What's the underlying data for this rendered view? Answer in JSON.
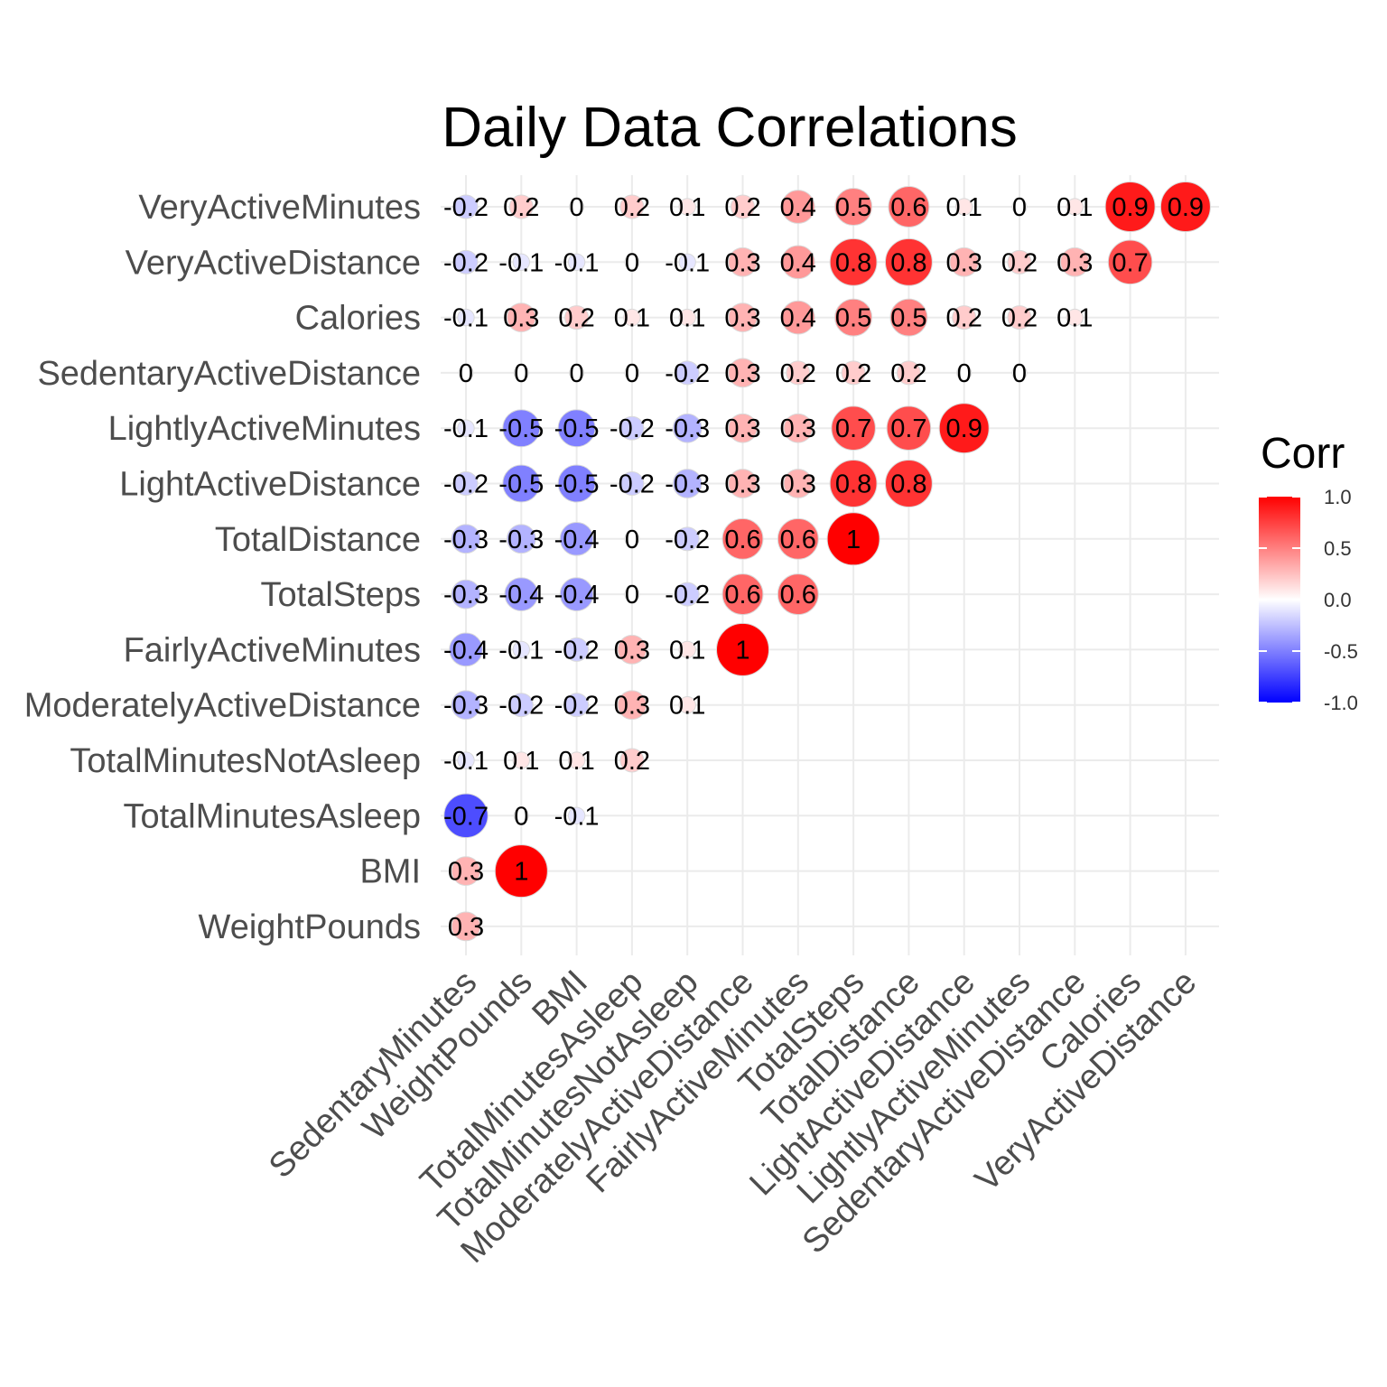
{
  "chart_data": {
    "type": "heatmap",
    "title": "Daily Data Correlations",
    "x_categories": [
      "SedentaryMinutes",
      "WeightPounds",
      "BMI",
      "TotalMinutesAsleep",
      "TotalMinutesNotAsleep",
      "ModeratelyActiveDistance",
      "FairlyActiveMinutes",
      "TotalSteps",
      "TotalDistance",
      "LightActiveDistance",
      "LightlyActiveMinutes",
      "SedentaryActiveDistance",
      "Calories",
      "VeryActiveDistance"
    ],
    "y_categories": [
      "VeryActiveMinutes",
      "VeryActiveDistance",
      "Calories",
      "SedentaryActiveDistance",
      "LightlyActiveMinutes",
      "LightActiveDistance",
      "TotalDistance",
      "TotalSteps",
      "FairlyActiveMinutes",
      "ModeratelyActiveDistance",
      "TotalMinutesNotAsleep",
      "TotalMinutesAsleep",
      "BMI",
      "WeightPounds"
    ],
    "values": [
      [
        -0.2,
        0.2,
        0,
        0.2,
        0.1,
        0.2,
        0.4,
        0.5,
        0.6,
        0.1,
        0,
        0.1,
        0.9,
        0.9
      ],
      [
        -0.2,
        -0.1,
        -0.1,
        0,
        -0.1,
        0.3,
        0.4,
        0.8,
        0.8,
        0.3,
        0.2,
        0.3,
        0.7,
        null
      ],
      [
        -0.1,
        0.3,
        0.2,
        0.1,
        0.1,
        0.3,
        0.4,
        0.5,
        0.5,
        0.2,
        0.2,
        0.1,
        null,
        null
      ],
      [
        0,
        0,
        0,
        0,
        -0.2,
        0.3,
        0.2,
        0.2,
        0.2,
        0,
        0,
        null,
        null,
        null
      ],
      [
        -0.1,
        -0.5,
        -0.5,
        -0.2,
        -0.3,
        0.3,
        0.3,
        0.7,
        0.7,
        0.9,
        null,
        null,
        null,
        null
      ],
      [
        -0.2,
        -0.5,
        -0.5,
        -0.2,
        -0.3,
        0.3,
        0.3,
        0.8,
        0.8,
        null,
        null,
        null,
        null,
        null
      ],
      [
        -0.3,
        -0.3,
        -0.4,
        0,
        -0.2,
        0.6,
        0.6,
        1,
        null,
        null,
        null,
        null,
        null,
        null
      ],
      [
        -0.3,
        -0.4,
        -0.4,
        0,
        -0.2,
        0.6,
        0.6,
        null,
        null,
        null,
        null,
        null,
        null,
        null
      ],
      [
        -0.4,
        -0.1,
        -0.2,
        0.3,
        0.1,
        1,
        null,
        null,
        null,
        null,
        null,
        null,
        null,
        null
      ],
      [
        -0.3,
        -0.2,
        -0.2,
        0.3,
        0.1,
        null,
        null,
        null,
        null,
        null,
        null,
        null,
        null,
        null
      ],
      [
        -0.1,
        0.1,
        0.1,
        0.2,
        null,
        null,
        null,
        null,
        null,
        null,
        null,
        null,
        null,
        null
      ],
      [
        -0.7,
        0,
        -0.1,
        null,
        null,
        null,
        null,
        null,
        null,
        null,
        null,
        null,
        null,
        null
      ],
      [
        0.3,
        1,
        null,
        null,
        null,
        null,
        null,
        null,
        null,
        null,
        null,
        null,
        null,
        null
      ],
      [
        0.3,
        null,
        null,
        null,
        null,
        null,
        null,
        null,
        null,
        null,
        null,
        null,
        null,
        null
      ]
    ],
    "legend": {
      "title": "Corr",
      "ticks": [
        "1.0",
        "0.5",
        "0.0",
        "-0.5",
        "-1.0"
      ],
      "range": [
        -1,
        1
      ],
      "placement": "right"
    },
    "colors": {
      "low": "#0000ff",
      "mid": "#ffffff",
      "high": "#ff0000",
      "grid": "#ebebeb"
    },
    "grid": true
  }
}
